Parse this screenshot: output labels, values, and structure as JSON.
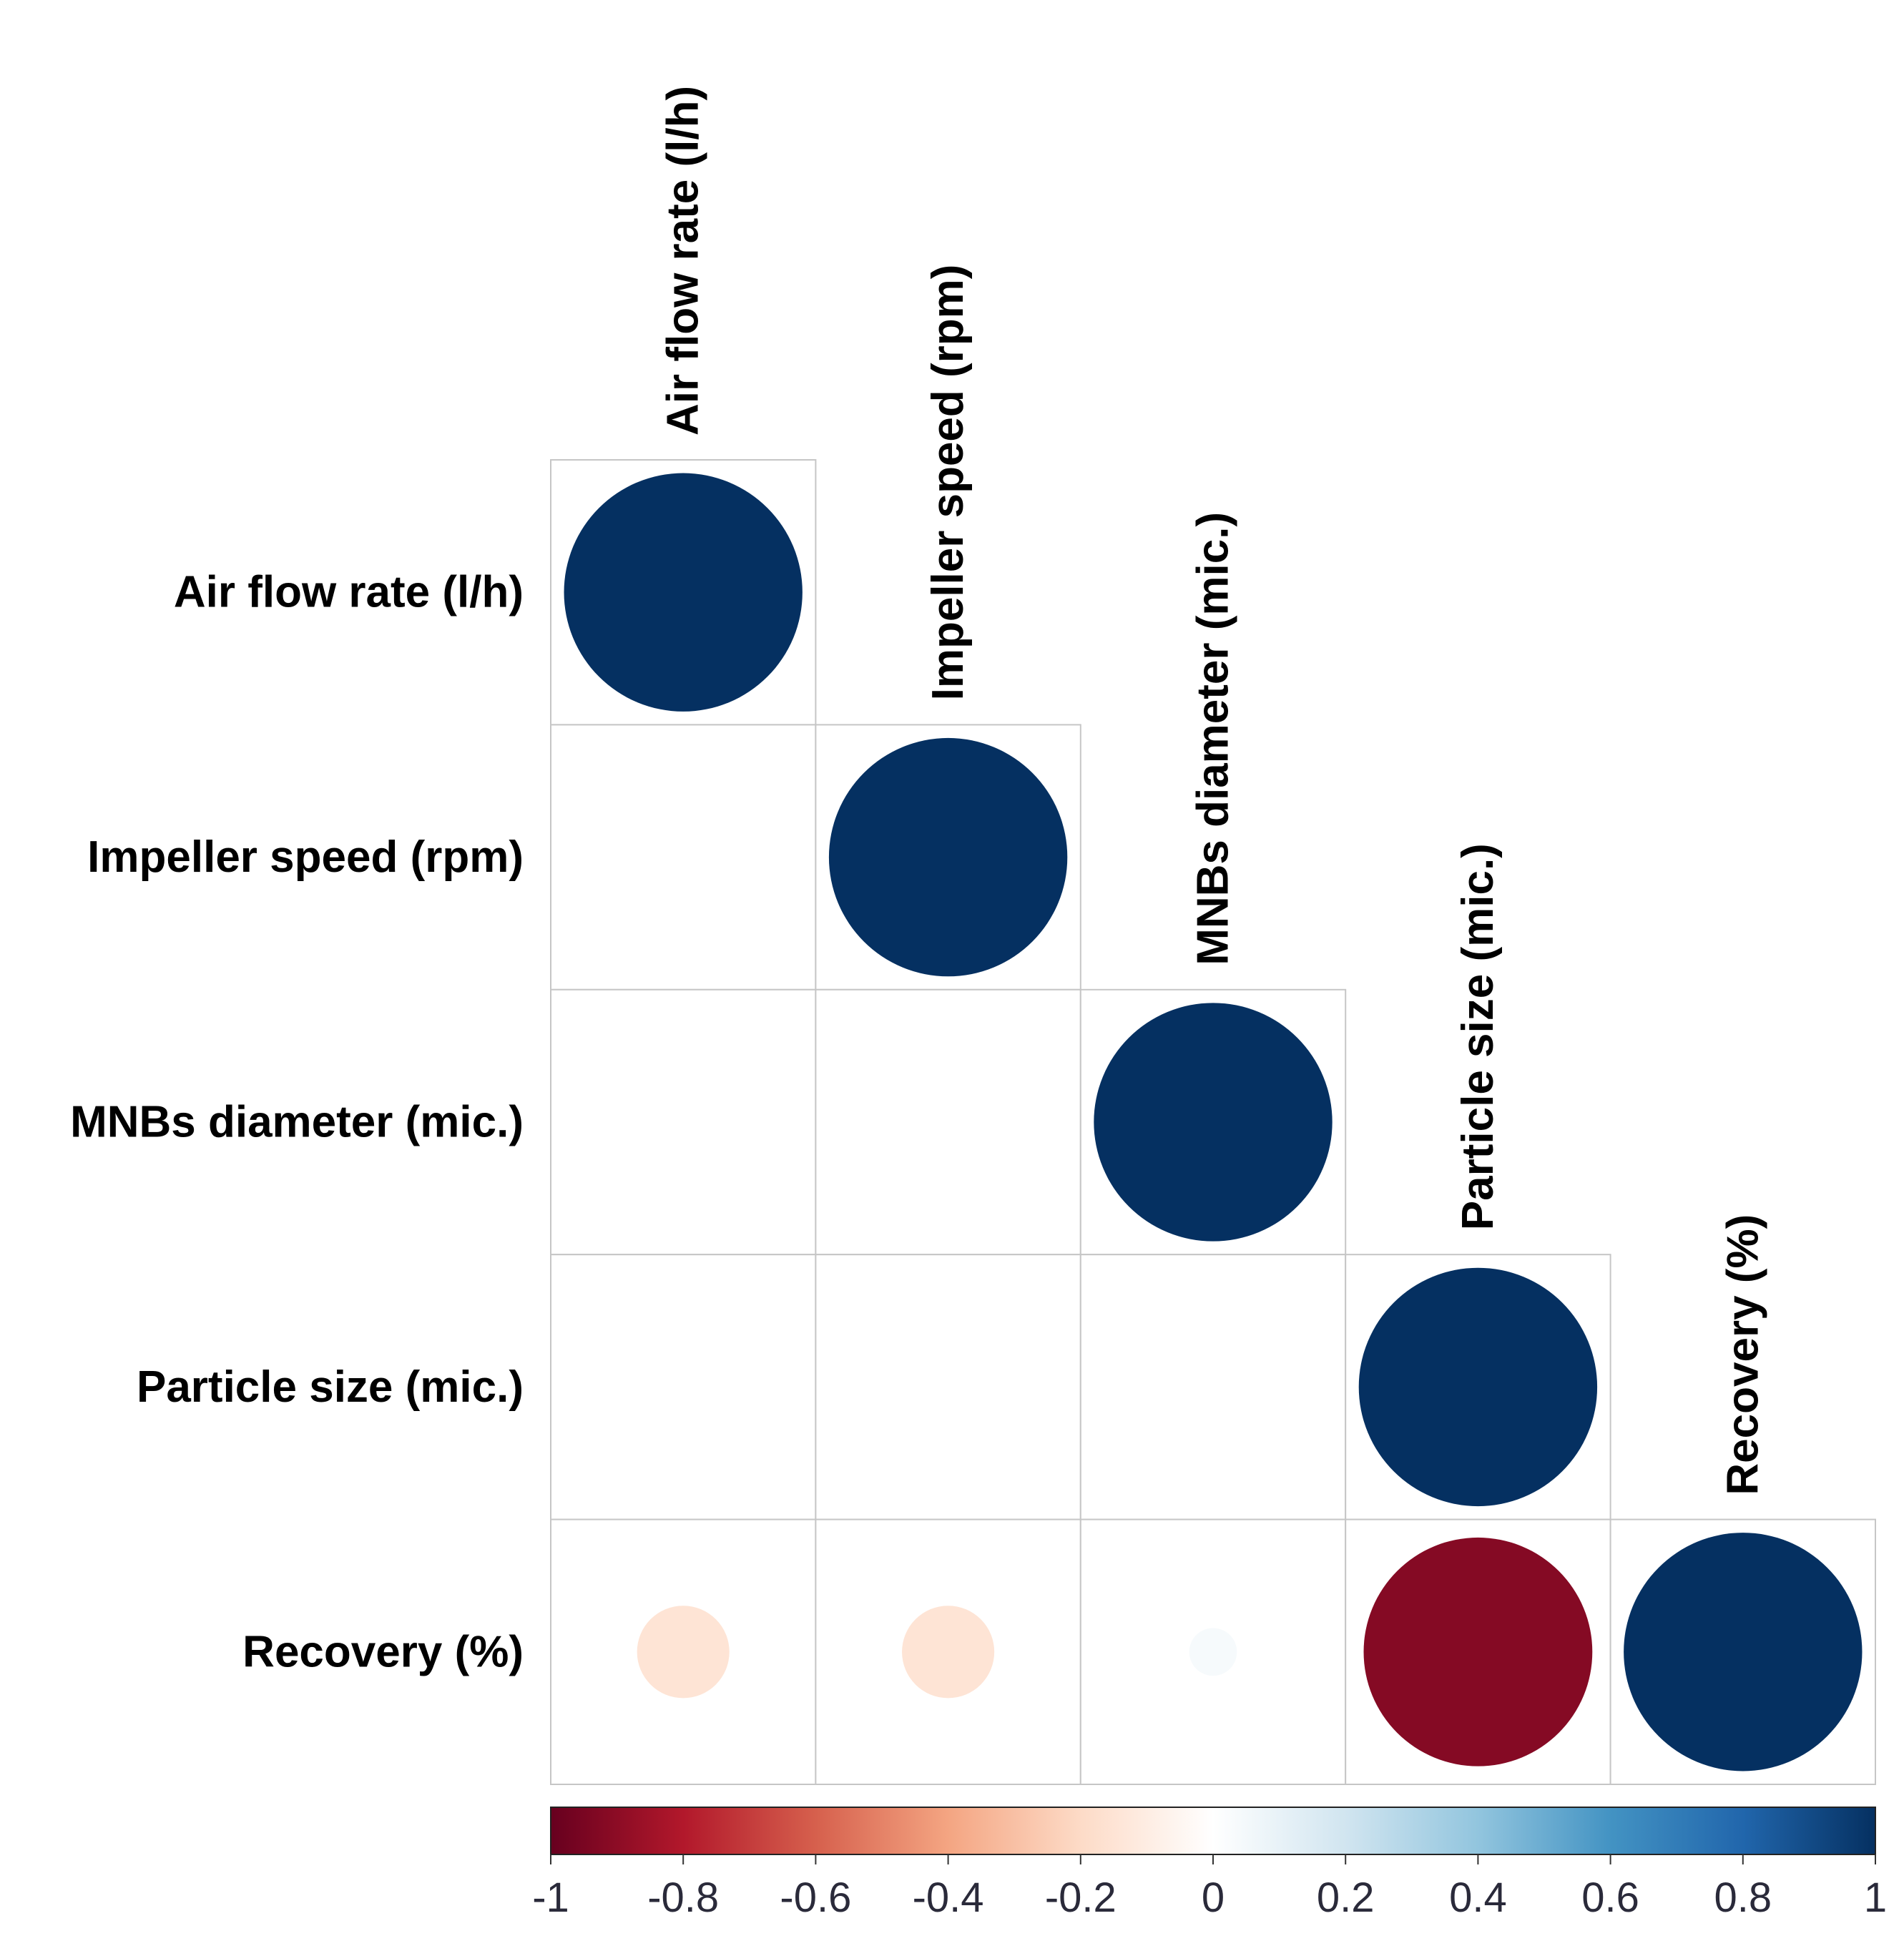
{
  "chart_data": {
    "type": "heatmap",
    "style": "correlation-circles-lower-triangle",
    "variables": [
      "Air flow rate (l/h)",
      "Impeller speed (rpm)",
      "MNBs diameter (mic.)",
      "Particle size (mic.)",
      "Recovery (%)"
    ],
    "matrix": [
      [
        1.0,
        0.0,
        0.0,
        0.0,
        -0.15
      ],
      [
        0.0,
        1.0,
        0.0,
        0.0,
        -0.15
      ],
      [
        0.0,
        0.0,
        1.0,
        0.0,
        0.04
      ],
      [
        0.0,
        0.0,
        0.0,
        1.0,
        -0.92
      ],
      [
        -0.15,
        -0.15,
        0.04,
        -0.92,
        1.0
      ]
    ],
    "colorbar": {
      "range": [
        -1,
        1
      ],
      "ticks": [
        "-1",
        "-0.8",
        "-0.6",
        "-0.4",
        "-0.2",
        "0",
        "0.2",
        "0.4",
        "0.6",
        "0.8",
        "1"
      ],
      "tick_values": [
        -1,
        -0.8,
        -0.6,
        -0.4,
        -0.2,
        0,
        0.2,
        0.4,
        0.6,
        0.8,
        1
      ],
      "colors": [
        "#67001f",
        "#b2182b",
        "#d6604d",
        "#f4a582",
        "#fddbc7",
        "#ffffff",
        "#d1e5f0",
        "#92c5de",
        "#4393c3",
        "#2166ac",
        "#053061"
      ],
      "position": "bottom"
    }
  }
}
